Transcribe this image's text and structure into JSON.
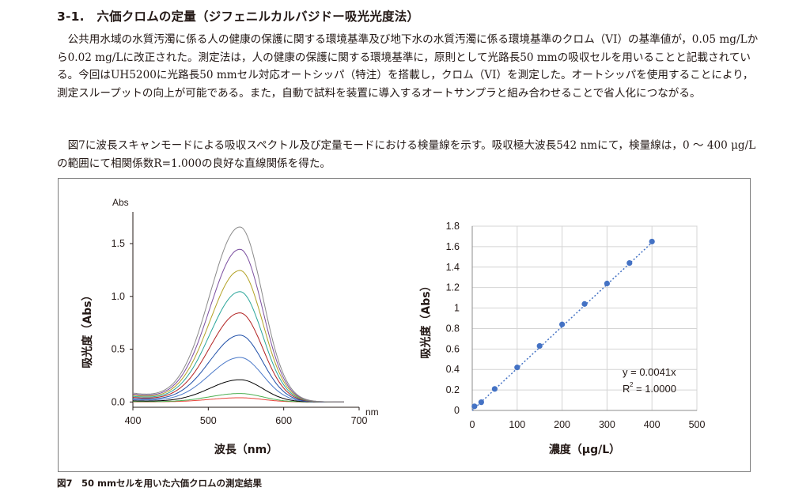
{
  "section": {
    "heading": "3-1.　六価クロムの定量（ジフェニルカルバジドー吸光光度法）",
    "paragraphs": [
      "公共用水域の水質汚濁に係る人の健康の保護に関する環境基準及び地下水の水質汚濁に係る環境基準のクロム（VI）の基準値が，0.05 mg/Lから0.02 mg/Lに改正された。測定法は，人の健康の保護に関する環境基準に，原則として光路長50 mmの吸収セルを用いることと記載されている。今回はUH5200に光路長50 mmセル対応オートシッパ（特注）を搭載し，クロム（VI）を測定した。オートシッパを使用することにより，測定スループットの向上が可能である。また，自動で試料を装置に導入するオートサンプラと組み合わせることで省人化につながる。",
      "図7に波長スキャンモードによる吸収スペクトル及び定量モードにおける検量線を示す。吸収極大波長542 nmにて，検量線は，0 ～ 400 μg/Lの範囲にて相関係数R=1.000の良好な直線関係を得た。"
    ]
  },
  "figure": {
    "caption": "図7　50 mmセルを用いた六価クロムの測定結果"
  },
  "chart_data": [
    {
      "type": "line",
      "title": "",
      "xlabel": "波長（nm）",
      "x_unit": "nm",
      "ylabel": "吸光度（Abs）",
      "y_unit": "Abs",
      "xlim": [
        400,
        700
      ],
      "ylim": [
        -0.05,
        1.8
      ],
      "x_ticks": [
        "400",
        "500",
        "600",
        "700"
      ],
      "y_ticks": [
        "0.0",
        "0.5",
        "1.0",
        "1.5"
      ],
      "peak_nm": 542,
      "grid": false,
      "series": [
        {
          "color": "#e8443a",
          "peak": 0.04
        },
        {
          "color": "#4caf50",
          "peak": 0.08
        },
        {
          "color": "#000000",
          "peak": 0.21
        },
        {
          "color": "#4a78c8",
          "peak": 0.42
        },
        {
          "color": "#1f4fa8",
          "peak": 0.63
        },
        {
          "color": "#b22222",
          "peak": 0.84
        },
        {
          "color": "#2aa59a",
          "peak": 1.04
        },
        {
          "color": "#b3a227",
          "peak": 1.24
        },
        {
          "color": "#7b4fa0",
          "peak": 1.44
        },
        {
          "color": "#8a8a8a",
          "peak": 1.65
        }
      ]
    },
    {
      "type": "scatter",
      "title": "",
      "xlabel": "濃度（μg/L）",
      "ylabel": "吸光度（Abs）",
      "xlim": [
        0,
        500
      ],
      "ylim": [
        0,
        1.8
      ],
      "x_ticks": [
        "0",
        "100",
        "200",
        "300",
        "400",
        "500"
      ],
      "y_ticks": [
        "0",
        "0.2",
        "0.4",
        "0.6",
        "0.8",
        "1",
        "1.2",
        "1.4",
        "1.6",
        "1.8"
      ],
      "grid": true,
      "points": [
        {
          "x": 5,
          "y": 0.04
        },
        {
          "x": 20,
          "y": 0.08
        },
        {
          "x": 50,
          "y": 0.21
        },
        {
          "x": 100,
          "y": 0.42
        },
        {
          "x": 150,
          "y": 0.63
        },
        {
          "x": 200,
          "y": 0.84
        },
        {
          "x": 250,
          "y": 1.04
        },
        {
          "x": 300,
          "y": 1.24
        },
        {
          "x": 350,
          "y": 1.44
        },
        {
          "x": 400,
          "y": 1.65
        }
      ],
      "trendline": {
        "slope": 0.0041,
        "intercept": 0,
        "style": "dotted"
      },
      "equation": "y = 0.0041x",
      "r2_label": "R",
      "r2_sup": "2",
      "r2_value": "= 1.0000",
      "point_color": "#4472c4"
    }
  ]
}
